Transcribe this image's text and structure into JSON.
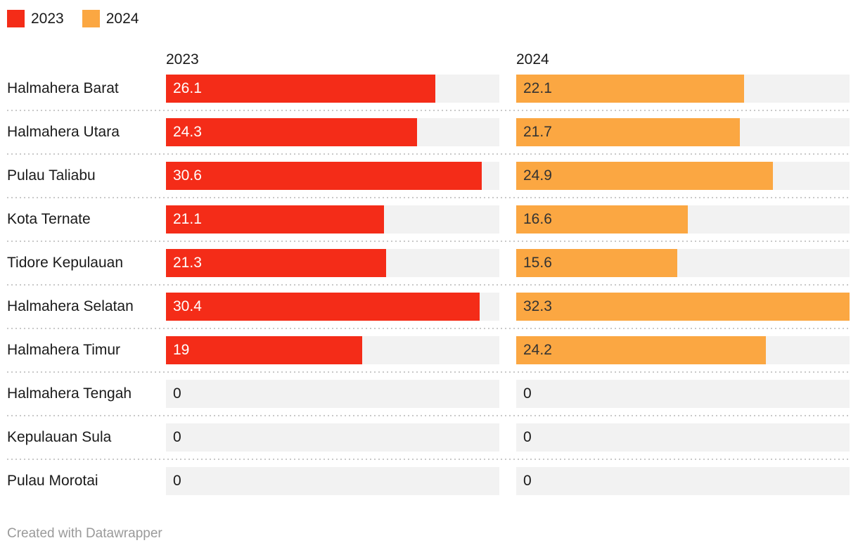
{
  "legend": {
    "items": [
      {
        "label": "2023",
        "color": "#f42c18"
      },
      {
        "label": "2024",
        "color": "#fba742"
      }
    ]
  },
  "columns": [
    {
      "header": "2023"
    },
    {
      "header": "2024"
    }
  ],
  "footer": {
    "text": "Created with Datawrapper"
  },
  "colors": {
    "track": "#f2f2f2",
    "separator": "#c9c9c9",
    "label_text": "#1a1a1a",
    "footer_text": "#9a9a9a"
  },
  "chart_data": {
    "type": "bar",
    "title": "",
    "orientation": "horizontal",
    "grid": false,
    "legend_position": "top-left",
    "xlim": [
      0,
      32.3
    ],
    "categories": [
      "Halmahera Barat",
      "Halmahera Utara",
      "Pulau Taliabu",
      "Kota Ternate",
      "Tidore Kepulauan",
      "Halmahera Selatan",
      "Halmahera Timur",
      "Halmahera Tengah",
      "Kepulauan Sula",
      "Pulau Morotai"
    ],
    "series": [
      {
        "name": "2023",
        "color": "#f42c18",
        "value_label_color": "#ffffff",
        "values": [
          26.1,
          24.3,
          30.6,
          21.1,
          21.3,
          30.4,
          19,
          0,
          0,
          0
        ]
      },
      {
        "name": "2024",
        "color": "#fba742",
        "value_label_color": "#333333",
        "values": [
          22.1,
          21.7,
          24.9,
          16.6,
          15.6,
          32.3,
          24.2,
          0,
          0,
          0
        ]
      }
    ]
  }
}
